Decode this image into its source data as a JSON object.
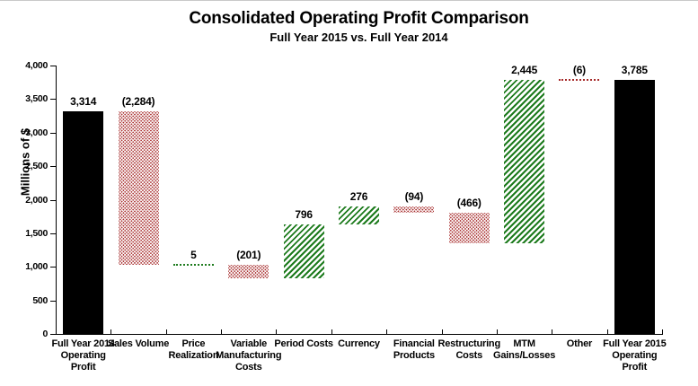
{
  "chart_data": {
    "type": "bar",
    "subtype": "waterfall",
    "title": "Consolidated Operating Profit Comparison",
    "subtitle": "Full Year 2015 vs. Full Year 2014",
    "ylabel": "Millions of $",
    "ylim": [
      0,
      4000
    ],
    "ytick_values": [
      0,
      500,
      1000,
      1500,
      2000,
      2500,
      3000,
      3500,
      4000
    ],
    "ytick_labels": [
      "0",
      "500",
      "1,000",
      "1,500",
      "2,000",
      "2,500",
      "3,000",
      "3,500",
      "4,000"
    ],
    "grid": false,
    "legend": false,
    "colors": {
      "total": "#000000",
      "increase": "#1d7b1d",
      "decrease": "#a62a2a"
    },
    "columns": [
      {
        "label_lines": [
          "Full Year 2014",
          "Operating",
          "Profit"
        ],
        "value": 3314,
        "display": "3,314",
        "kind": "total"
      },
      {
        "label_lines": [
          "Sales Volume"
        ],
        "value": -2284,
        "display": "(2,284)",
        "kind": "decrease"
      },
      {
        "label_lines": [
          "Price",
          "Realization"
        ],
        "value": 5,
        "display": "5",
        "kind": "increase"
      },
      {
        "label_lines": [
          "Variable",
          "Manufacturing",
          "Costs"
        ],
        "value": -201,
        "display": "(201)",
        "kind": "decrease"
      },
      {
        "label_lines": [
          "Period Costs"
        ],
        "value": 796,
        "display": "796",
        "kind": "increase"
      },
      {
        "label_lines": [
          "Currency"
        ],
        "value": 276,
        "display": "276",
        "kind": "increase"
      },
      {
        "label_lines": [
          "Financial",
          "Products"
        ],
        "value": -94,
        "display": "(94)",
        "kind": "decrease"
      },
      {
        "label_lines": [
          "Restructuring",
          "Costs"
        ],
        "value": -466,
        "display": "(466)",
        "kind": "decrease"
      },
      {
        "label_lines": [
          "MTM",
          "Gains/Losses"
        ],
        "value": 2445,
        "display": "2,445",
        "kind": "increase"
      },
      {
        "label_lines": [
          "Other"
        ],
        "value": -6,
        "display": "(6)",
        "kind": "decrease"
      },
      {
        "label_lines": [
          "Full Year 2015",
          "Operating",
          "Profit"
        ],
        "value": 3785,
        "display": "3,785",
        "kind": "total"
      }
    ]
  }
}
